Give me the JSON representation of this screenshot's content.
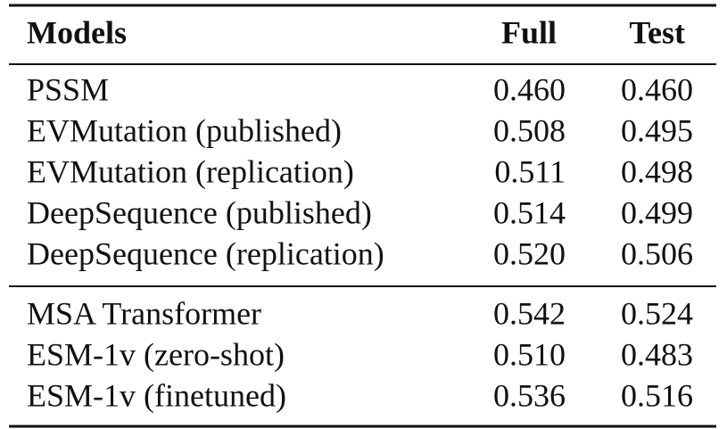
{
  "table": {
    "columns": [
      "Models",
      "Full",
      "Test"
    ],
    "groups": [
      {
        "rows": [
          [
            "PSSM",
            "0.460",
            "0.460"
          ],
          [
            "EVMutation (published)",
            "0.508",
            "0.495"
          ],
          [
            "EVMutation (replication)",
            "0.511",
            "0.498"
          ],
          [
            "DeepSequence (published)",
            "0.514",
            "0.499"
          ],
          [
            "DeepSequence (replication)",
            "0.520",
            "0.506"
          ]
        ]
      },
      {
        "rows": [
          [
            "MSA Transformer",
            "0.542",
            "0.524"
          ],
          [
            "ESM-1v (zero-shot)",
            "0.510",
            "0.483"
          ],
          [
            "ESM-1v (finetuned)",
            "0.536",
            "0.516"
          ]
        ]
      }
    ]
  }
}
